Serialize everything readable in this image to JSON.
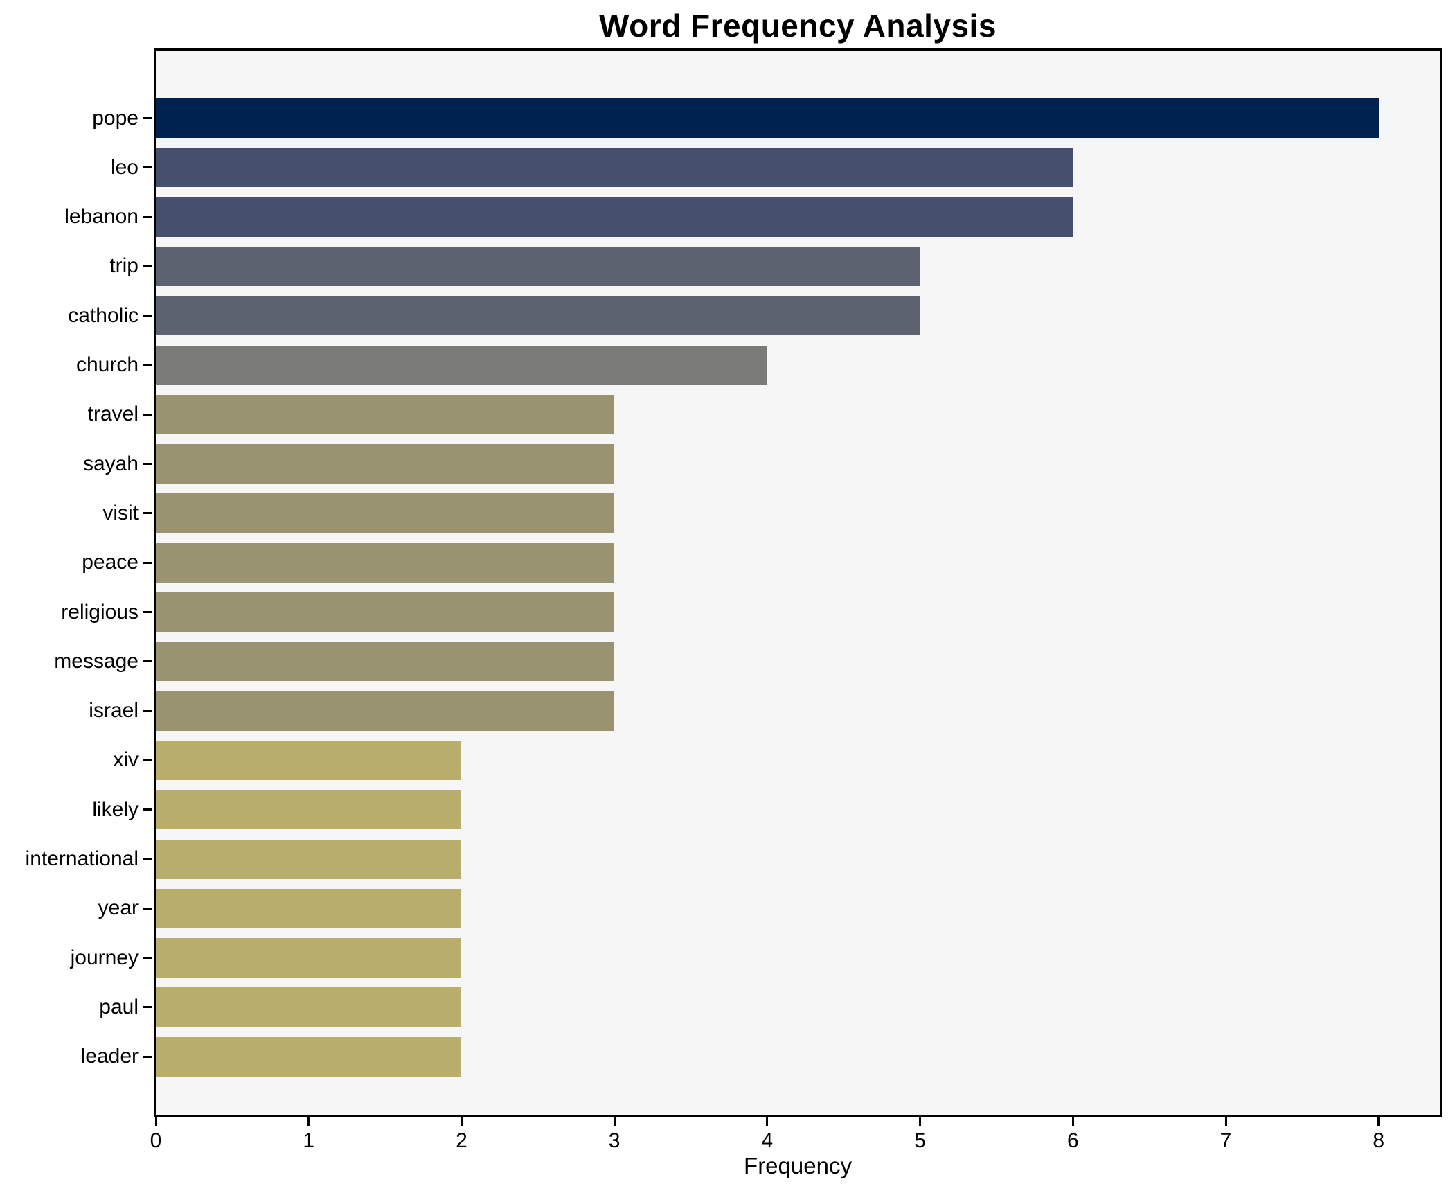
{
  "title": "Word Frequency Analysis",
  "chart_data": {
    "type": "bar",
    "orientation": "horizontal",
    "title": "Word Frequency Analysis",
    "xlabel": "Frequency",
    "ylabel": "",
    "categories": [
      "pope",
      "leo",
      "lebanon",
      "trip",
      "catholic",
      "church",
      "travel",
      "sayah",
      "visit",
      "peace",
      "religious",
      "message",
      "israel",
      "xiv",
      "likely",
      "international",
      "year",
      "journey",
      "paul",
      "leader"
    ],
    "values": [
      8,
      6,
      6,
      5,
      5,
      4,
      3,
      3,
      3,
      3,
      3,
      3,
      3,
      2,
      2,
      2,
      2,
      2,
      2,
      2
    ],
    "x_ticks": [
      0,
      1,
      2,
      3,
      4,
      5,
      6,
      7,
      8
    ],
    "xlim": [
      0,
      8.4
    ],
    "grid": false,
    "legend": null,
    "colors_by_value": {
      "8": "#00224e",
      "6": "#45506f",
      "5": "#5d6270",
      "4": "#7a7a76",
      "3": "#9a9372",
      "2": "#b9ad6b"
    },
    "plot_background": "#f6f6f6",
    "figure_background": "#ffffff",
    "spine_color": "#000000",
    "text_color": "#000000"
  }
}
